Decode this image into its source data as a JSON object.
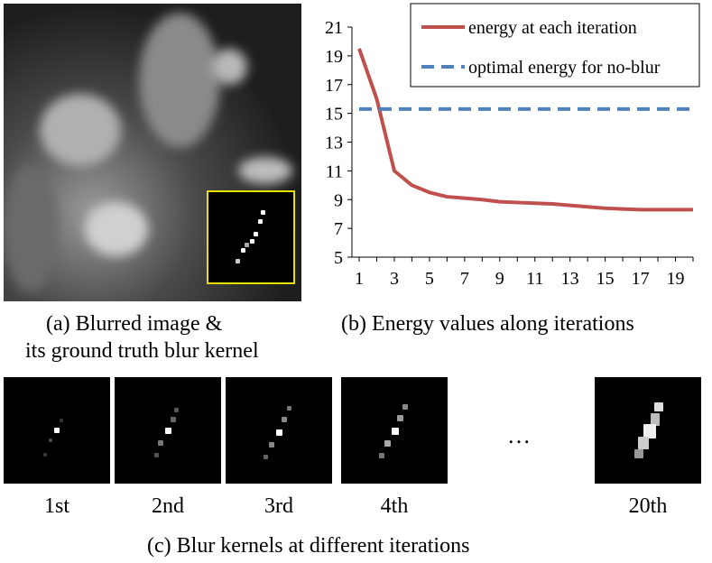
{
  "panel_a": {
    "caption_line1": "(a) Blurred image &",
    "caption_line2": "its ground truth blur kernel"
  },
  "panel_b": {
    "caption": "(b) Energy values along iterations"
  },
  "panel_c": {
    "caption": "(c) Blur kernels at different iterations",
    "kernels": [
      {
        "label": "1st"
      },
      {
        "label": "2nd"
      },
      {
        "label": "3rd"
      },
      {
        "label": "4th"
      },
      {
        "label": "20th"
      }
    ],
    "ellipsis": "…"
  },
  "colors": {
    "energy_line": "#c0504d",
    "optimal_line": "#4f81bd",
    "inset_border": "#e8e000"
  },
  "chart_data": {
    "type": "line",
    "title": "",
    "xlabel": "",
    "ylabel": "",
    "x": [
      1,
      2,
      3,
      4,
      5,
      6,
      7,
      8,
      9,
      10,
      11,
      12,
      13,
      14,
      15,
      16,
      17,
      18,
      19,
      20
    ],
    "x_ticks": [
      "1",
      "3",
      "5",
      "7",
      "9",
      "11",
      "13",
      "15",
      "17",
      "19"
    ],
    "y_ticks": [
      "5",
      "7",
      "9",
      "11",
      "13",
      "15",
      "17",
      "19",
      "21"
    ],
    "ylim": [
      5,
      21
    ],
    "xlim": [
      1,
      20
    ],
    "legend_position": "top-right",
    "series": [
      {
        "name": "energy at each iteration",
        "style": "solid",
        "values": [
          19.5,
          16.0,
          11.0,
          10.0,
          9.5,
          9.2,
          9.1,
          9.0,
          8.85,
          8.8,
          8.75,
          8.7,
          8.6,
          8.5,
          8.4,
          8.35,
          8.3,
          8.3,
          8.3,
          8.3
        ]
      },
      {
        "name": "optimal energy for no-blur",
        "style": "dashed",
        "values": [
          15.3,
          15.3,
          15.3,
          15.3,
          15.3,
          15.3,
          15.3,
          15.3,
          15.3,
          15.3,
          15.3,
          15.3,
          15.3,
          15.3,
          15.3,
          15.3,
          15.3,
          15.3,
          15.3,
          15.3
        ]
      }
    ]
  }
}
